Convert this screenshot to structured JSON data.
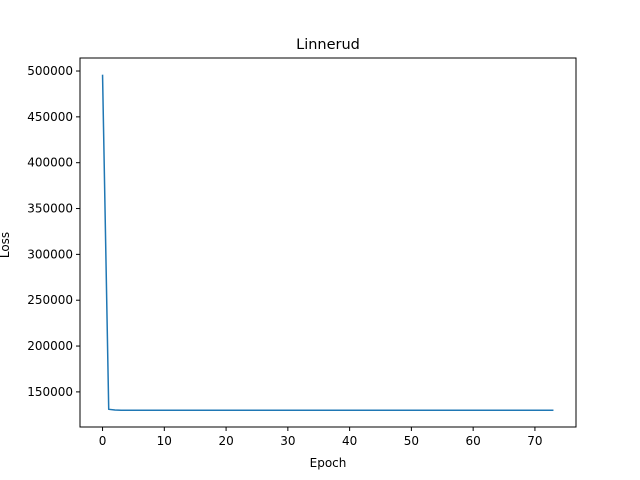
{
  "chart_data": {
    "type": "line",
    "title": "Linnerud",
    "xlabel": "Epoch",
    "ylabel": "Loss",
    "xlim": [
      -3.65,
      76.65
    ],
    "ylim": [
      111700,
      514200
    ],
    "xticks": [
      0,
      10,
      20,
      30,
      40,
      50,
      60,
      70
    ],
    "yticks": [
      150000,
      200000,
      250000,
      300000,
      350000,
      400000,
      450000,
      500000
    ],
    "grid": false,
    "series": [
      {
        "color": "#1f77b4",
        "x": [
          0,
          1,
          2,
          3,
          4,
          5,
          6,
          8,
          10,
          15,
          20,
          30,
          40,
          50,
          60,
          73
        ],
        "y": [
          496000,
          131000,
          130200,
          130000,
          130000,
          130000,
          130000,
          130000,
          129900,
          129900,
          129900,
          129900,
          129900,
          129900,
          129900,
          129900
        ]
      }
    ]
  }
}
